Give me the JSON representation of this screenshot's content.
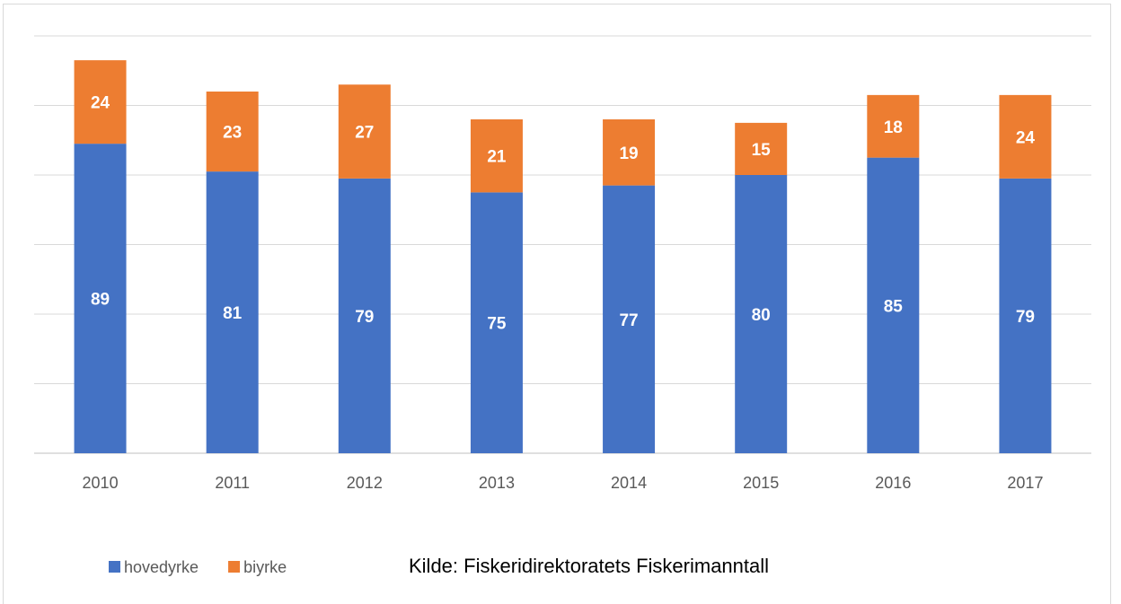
{
  "chart_data": {
    "type": "stacked_bar",
    "categories": [
      "2010",
      "2011",
      "2012",
      "2013",
      "2014",
      "2015",
      "2016",
      "2017"
    ],
    "series": [
      {
        "name": "hovedyrke",
        "color": "#4472c4",
        "values": [
          89,
          81,
          79,
          75,
          77,
          80,
          85,
          79
        ]
      },
      {
        "name": "biyrke",
        "color": "#ed7d31",
        "values": [
          24,
          23,
          27,
          21,
          19,
          15,
          18,
          24
        ]
      }
    ],
    "ylim": [
      0,
      120
    ],
    "yticks": [
      0,
      20,
      40,
      60,
      80,
      100,
      120
    ],
    "grid": true,
    "annotation": "Kilde: Fiskeridirektoratets Fiskerimanntall",
    "legend": "bottom"
  }
}
